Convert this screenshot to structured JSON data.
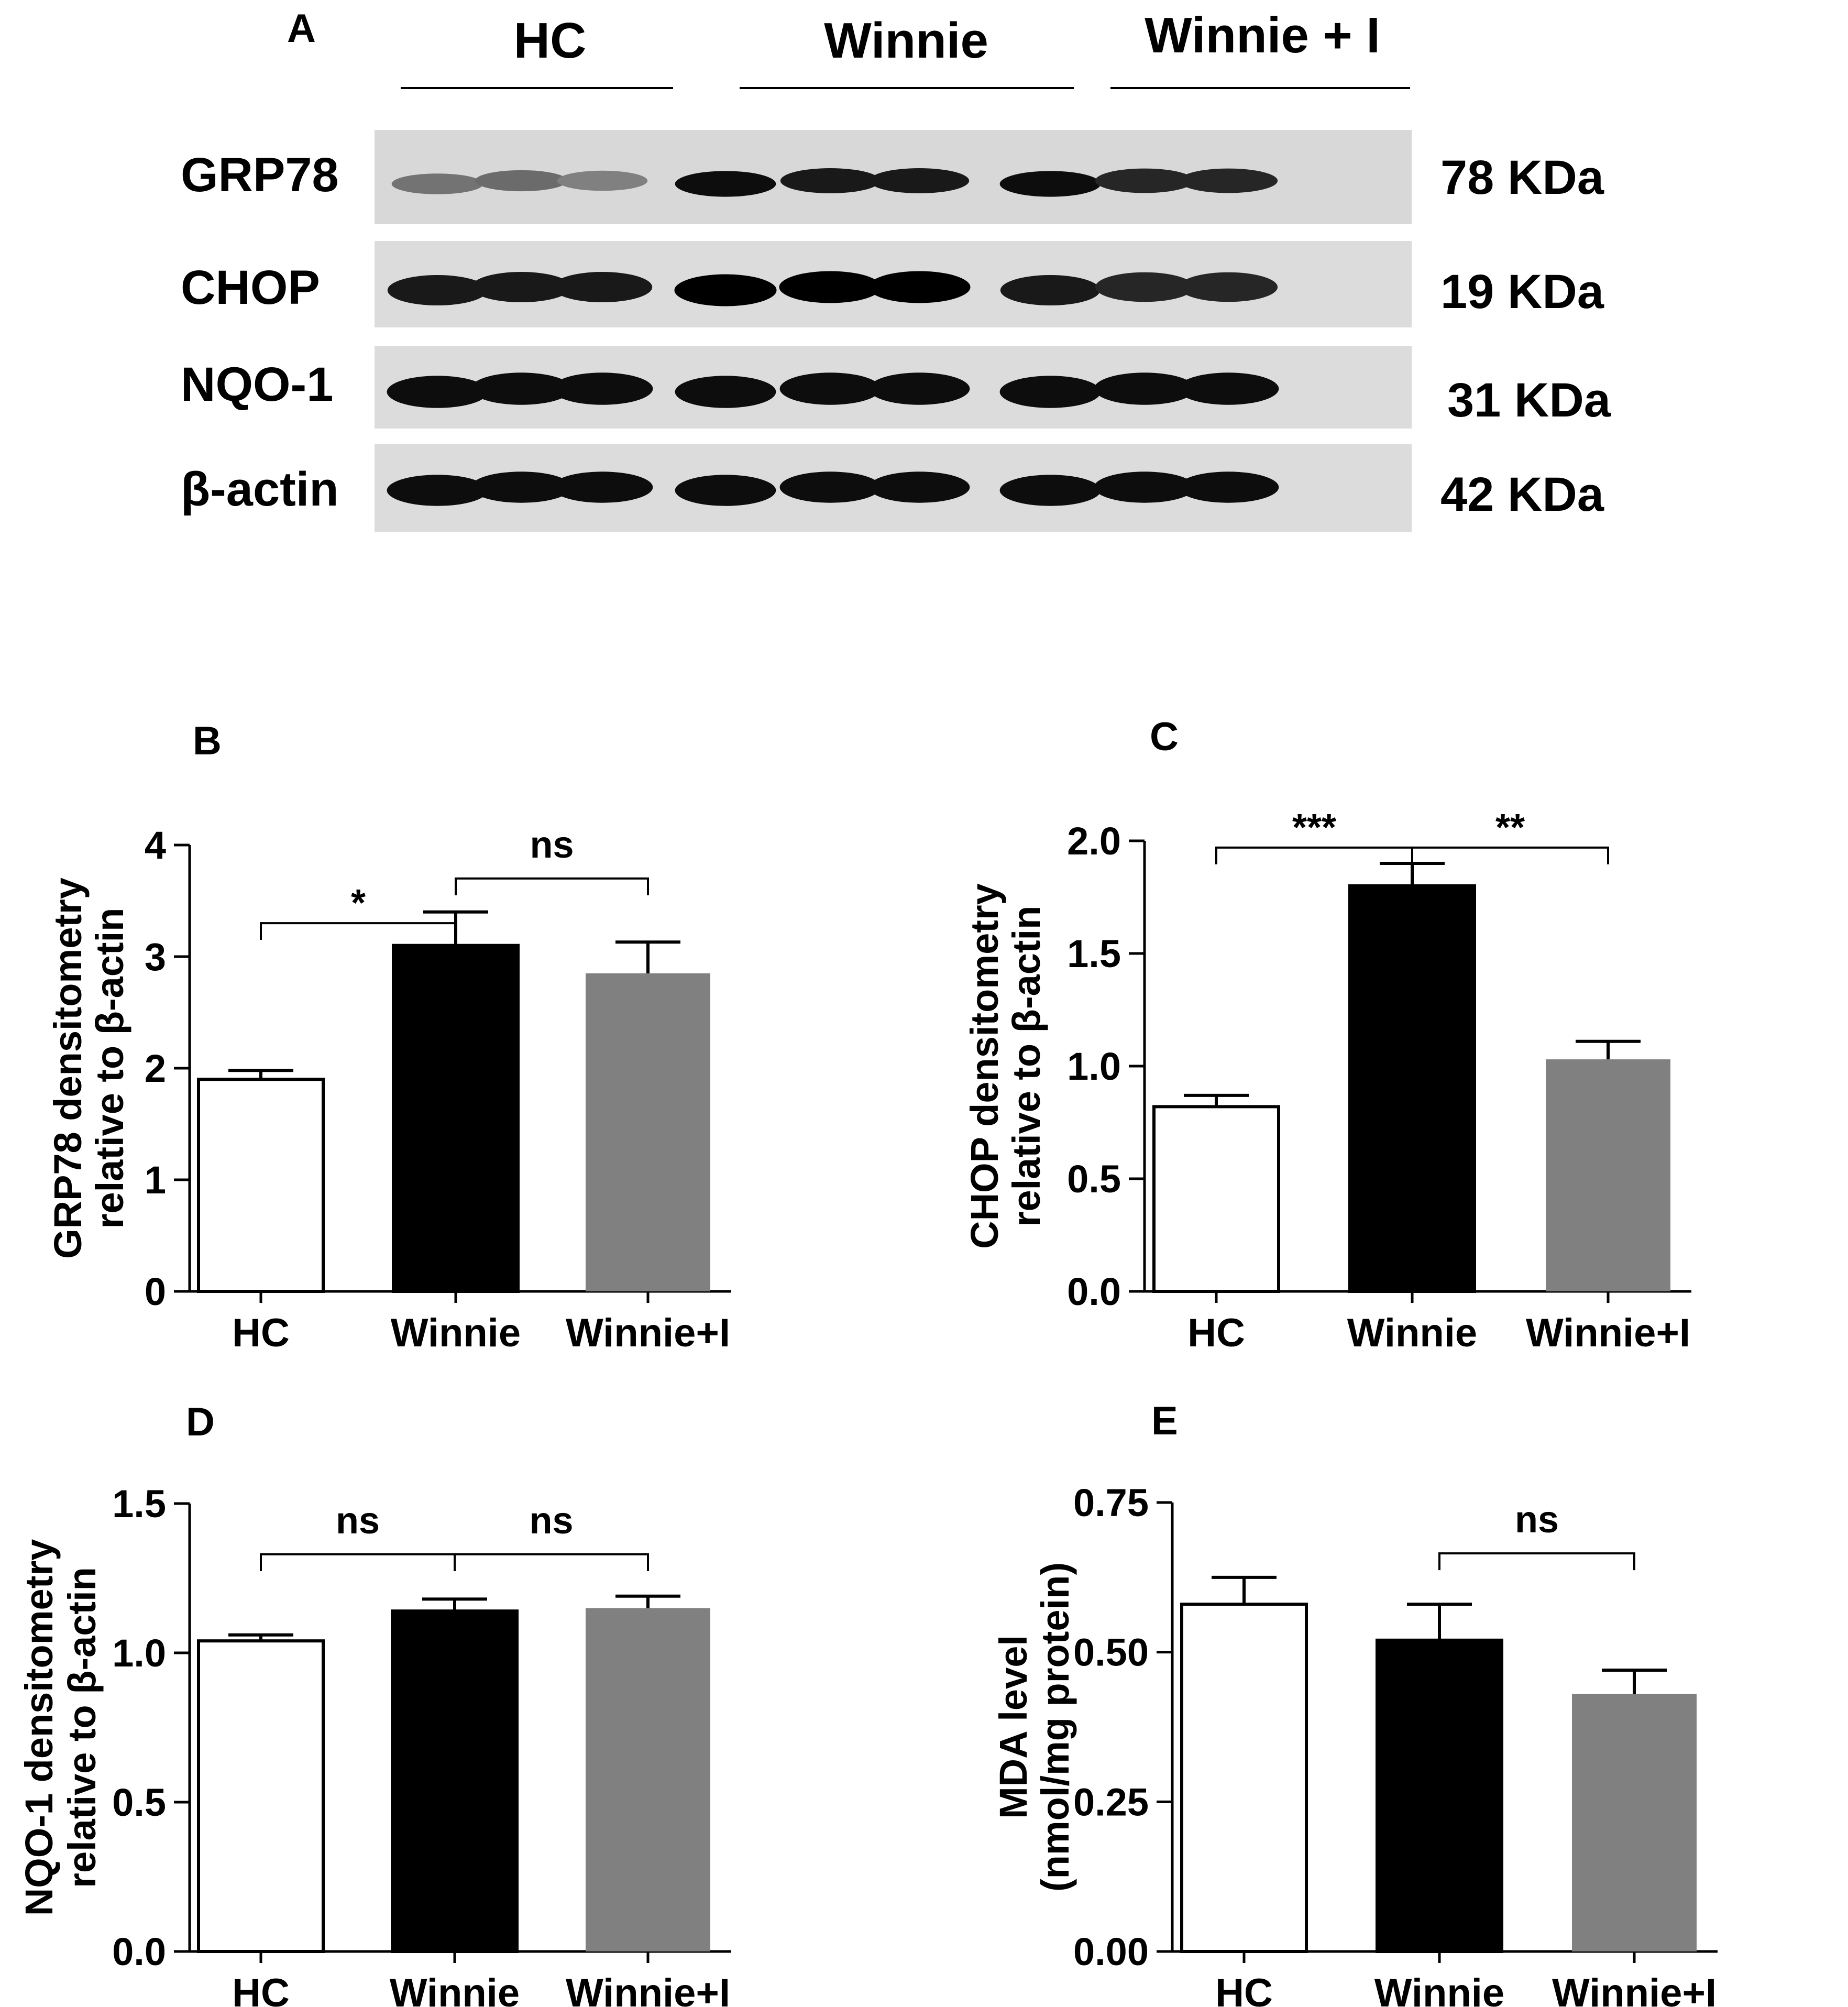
{
  "western_blot": {
    "panel_letter": "A",
    "groups": [
      "HC",
      "Winnie",
      "Winnie + I"
    ],
    "bands": [
      {
        "label": "GRP78",
        "kda": "78 KDa",
        "intensity": [
          0.55,
          0.58,
          0.5,
          0.95,
          0.9,
          0.9,
          0.95,
          0.85,
          0.85
        ]
      },
      {
        "label": "CHOP",
        "kda": "19 KDa",
        "intensity": [
          0.9,
          0.9,
          0.9,
          1.0,
          1.0,
          1.0,
          0.9,
          0.85,
          0.85
        ]
      },
      {
        "label": "NQO-1",
        "kda": "31 KDa",
        "intensity": [
          0.95,
          0.95,
          0.95,
          0.95,
          0.95,
          0.95,
          0.95,
          0.95,
          0.95
        ]
      },
      {
        "label": "β-actin",
        "kda": "42 KDa",
        "intensity": [
          0.95,
          0.95,
          0.95,
          0.95,
          0.95,
          0.95,
          0.95,
          0.95,
          0.95
        ]
      }
    ]
  },
  "chart_data": [
    {
      "panel_letter": "B",
      "type": "bar",
      "categories": [
        "HC",
        "Winnie",
        "Winnie+I"
      ],
      "values": [
        1.9,
        3.1,
        2.85
      ],
      "errors": [
        0.08,
        0.3,
        0.28
      ],
      "colors": [
        "#ffffff",
        "#000000",
        "#808080"
      ],
      "ylabel": [
        "GRP78 densitometry",
        "relative to β-actin"
      ],
      "ylim": [
        0,
        4
      ],
      "ticks": [
        "0",
        "1",
        "2",
        "3",
        "4"
      ],
      "tick_values": [
        0,
        1,
        2,
        3,
        4
      ],
      "annotations": [
        {
          "from": 0,
          "to": 1,
          "label": "*",
          "level": 3.3
        },
        {
          "from": 1,
          "to": 2,
          "label": "ns",
          "level": 3.7
        }
      ]
    },
    {
      "panel_letter": "C",
      "type": "bar",
      "categories": [
        "HC",
        "Winnie",
        "Winnie+I"
      ],
      "values": [
        0.82,
        1.8,
        1.03
      ],
      "errors": [
        0.05,
        0.1,
        0.08
      ],
      "colors": [
        "#ffffff",
        "#000000",
        "#808080"
      ],
      "ylabel": [
        "CHOP densitometry",
        "relative to β-actin"
      ],
      "ylim": [
        0,
        2.0
      ],
      "ticks": [
        "0.0",
        "0.5",
        "1.0",
        "1.5",
        "2.0"
      ],
      "tick_values": [
        0,
        0.5,
        1.0,
        1.5,
        2.0
      ],
      "annotations": [
        {
          "from": 0,
          "to": 1,
          "label": "***",
          "level": 1.97
        },
        {
          "from": 1,
          "to": 2,
          "label": "**",
          "level": 1.97
        }
      ]
    },
    {
      "panel_letter": "D",
      "type": "bar",
      "categories": [
        "HC",
        "Winnie",
        "Winnie+I"
      ],
      "values": [
        1.04,
        1.14,
        1.15
      ],
      "errors": [
        0.02,
        0.04,
        0.04
      ],
      "colors": [
        "#ffffff",
        "#000000",
        "#808080"
      ],
      "ylabel": [
        "NQO-1 densitometry",
        "relative to β-actin"
      ],
      "ylim": [
        0,
        1.5
      ],
      "ticks": [
        "0.0",
        "0.5",
        "1.0",
        "1.5"
      ],
      "tick_values": [
        0,
        0.5,
        1.0,
        1.5
      ],
      "annotations": [
        {
          "from": 0,
          "to": 1,
          "label": "ns",
          "level": 1.33
        },
        {
          "from": 1,
          "to": 2,
          "label": "ns",
          "level": 1.33
        }
      ]
    },
    {
      "panel_letter": "E",
      "type": "bar",
      "categories": [
        "HC",
        "Winnie",
        "Winnie+I"
      ],
      "values": [
        0.58,
        0.52,
        0.43
      ],
      "errors": [
        0.045,
        0.06,
        0.04
      ],
      "colors": [
        "#ffffff",
        "#000000",
        "#808080"
      ],
      "ylabel": [
        "MDA level",
        "(nmol/mg protein)"
      ],
      "ylim": [
        0,
        0.75
      ],
      "ticks": [
        "0.00",
        "0.25",
        "0.50",
        "0.75"
      ],
      "tick_values": [
        0,
        0.25,
        0.5,
        0.75
      ],
      "annotations": [
        {
          "from": 1,
          "to": 2,
          "label": "ns",
          "level": 0.665
        }
      ]
    }
  ]
}
